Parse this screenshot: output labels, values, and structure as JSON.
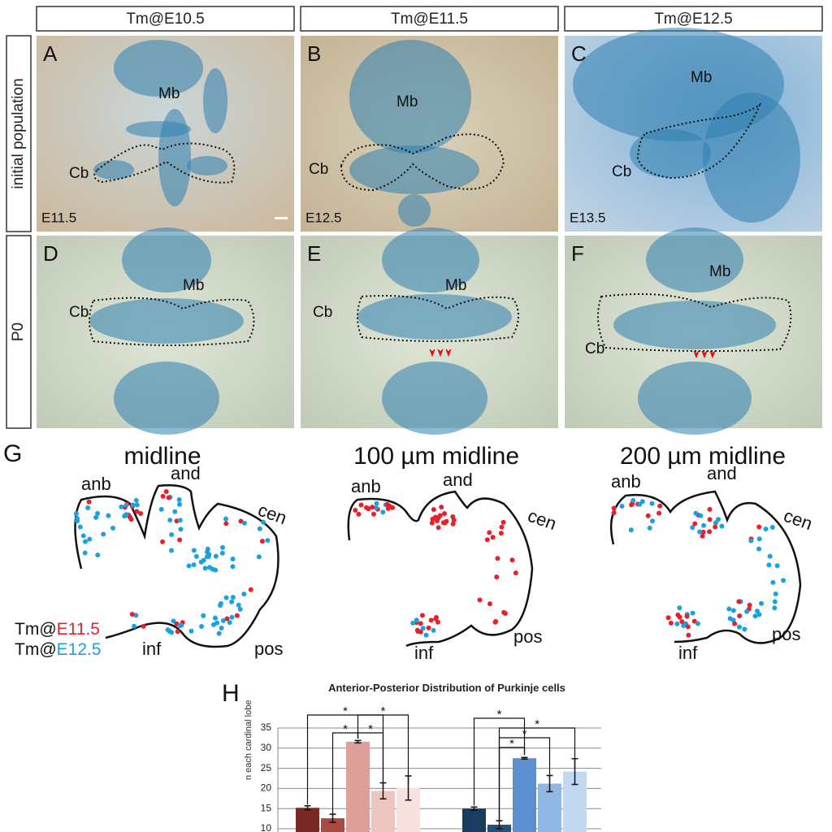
{
  "columns": [
    "Tm@E10.5",
    "Tm@E11.5",
    "Tm@E12.5"
  ],
  "row_labels": [
    "initial population",
    "P0"
  ],
  "panels": [
    {
      "letter": "A",
      "stage": "E11.5",
      "labels": [
        "Mb",
        "Cb"
      ]
    },
    {
      "letter": "B",
      "stage": "E12.5",
      "labels": [
        "Mb",
        "Cb"
      ]
    },
    {
      "letter": "C",
      "stage": "E13.5",
      "labels": [
        "Mb",
        "Cb"
      ]
    },
    {
      "letter": "D",
      "labels": [
        "Mb",
        "Cb"
      ]
    },
    {
      "letter": "E",
      "labels": [
        "Mb",
        "Cb"
      ]
    },
    {
      "letter": "F",
      "labels": [
        "Mb",
        "Cb"
      ]
    }
  ],
  "panel_g": {
    "letter": "G",
    "sections": [
      {
        "title": "midline",
        "lobes": [
          "anb",
          "and",
          "cen",
          "inf",
          "pos"
        ]
      },
      {
        "title": "100 µm midline",
        "lobes": [
          "anb",
          "and",
          "cen",
          "inf",
          "pos"
        ]
      },
      {
        "title": "200 µm midline",
        "lobes": [
          "anb",
          "and",
          "cen",
          "inf",
          "pos"
        ]
      }
    ],
    "legend": [
      {
        "prefix": "Tm@",
        "label": "E11.5",
        "color": "#e8202a"
      },
      {
        "prefix": "Tm@",
        "label": "E12.5",
        "color": "#1ba1e2"
      }
    ]
  },
  "panel_h": {
    "letter": "H"
  },
  "chart_data": {
    "type": "bar",
    "title": "Anterior-Posterior Distribution of Purkinje cells",
    "y_label": "n each cardinal lobe",
    "annotation": "*",
    "ylim": [
      10,
      35
    ],
    "yticks": [
      10,
      15,
      20,
      25,
      30,
      35
    ],
    "grid": true,
    "series": [
      {
        "values": [
          15.2,
          12.6,
          31.6,
          19.4,
          20.1
        ],
        "errors": [
          0.5,
          1.0,
          0.3,
          2.0,
          3.0
        ],
        "colors": [
          "#7a2a24",
          "#a84a44",
          "#dd9f99",
          "#eec6c1",
          "#f7e2df"
        ]
      },
      {
        "values": [
          15.0,
          11.0,
          27.5,
          21.2,
          24.2
        ],
        "errors": [
          0.4,
          1.0,
          0.2,
          2.0,
          3.2
        ],
        "colors": [
          "#1b3b5f",
          "#24507e",
          "#5b8fd0",
          "#90b6e4",
          "#c3d9f2"
        ]
      }
    ]
  }
}
